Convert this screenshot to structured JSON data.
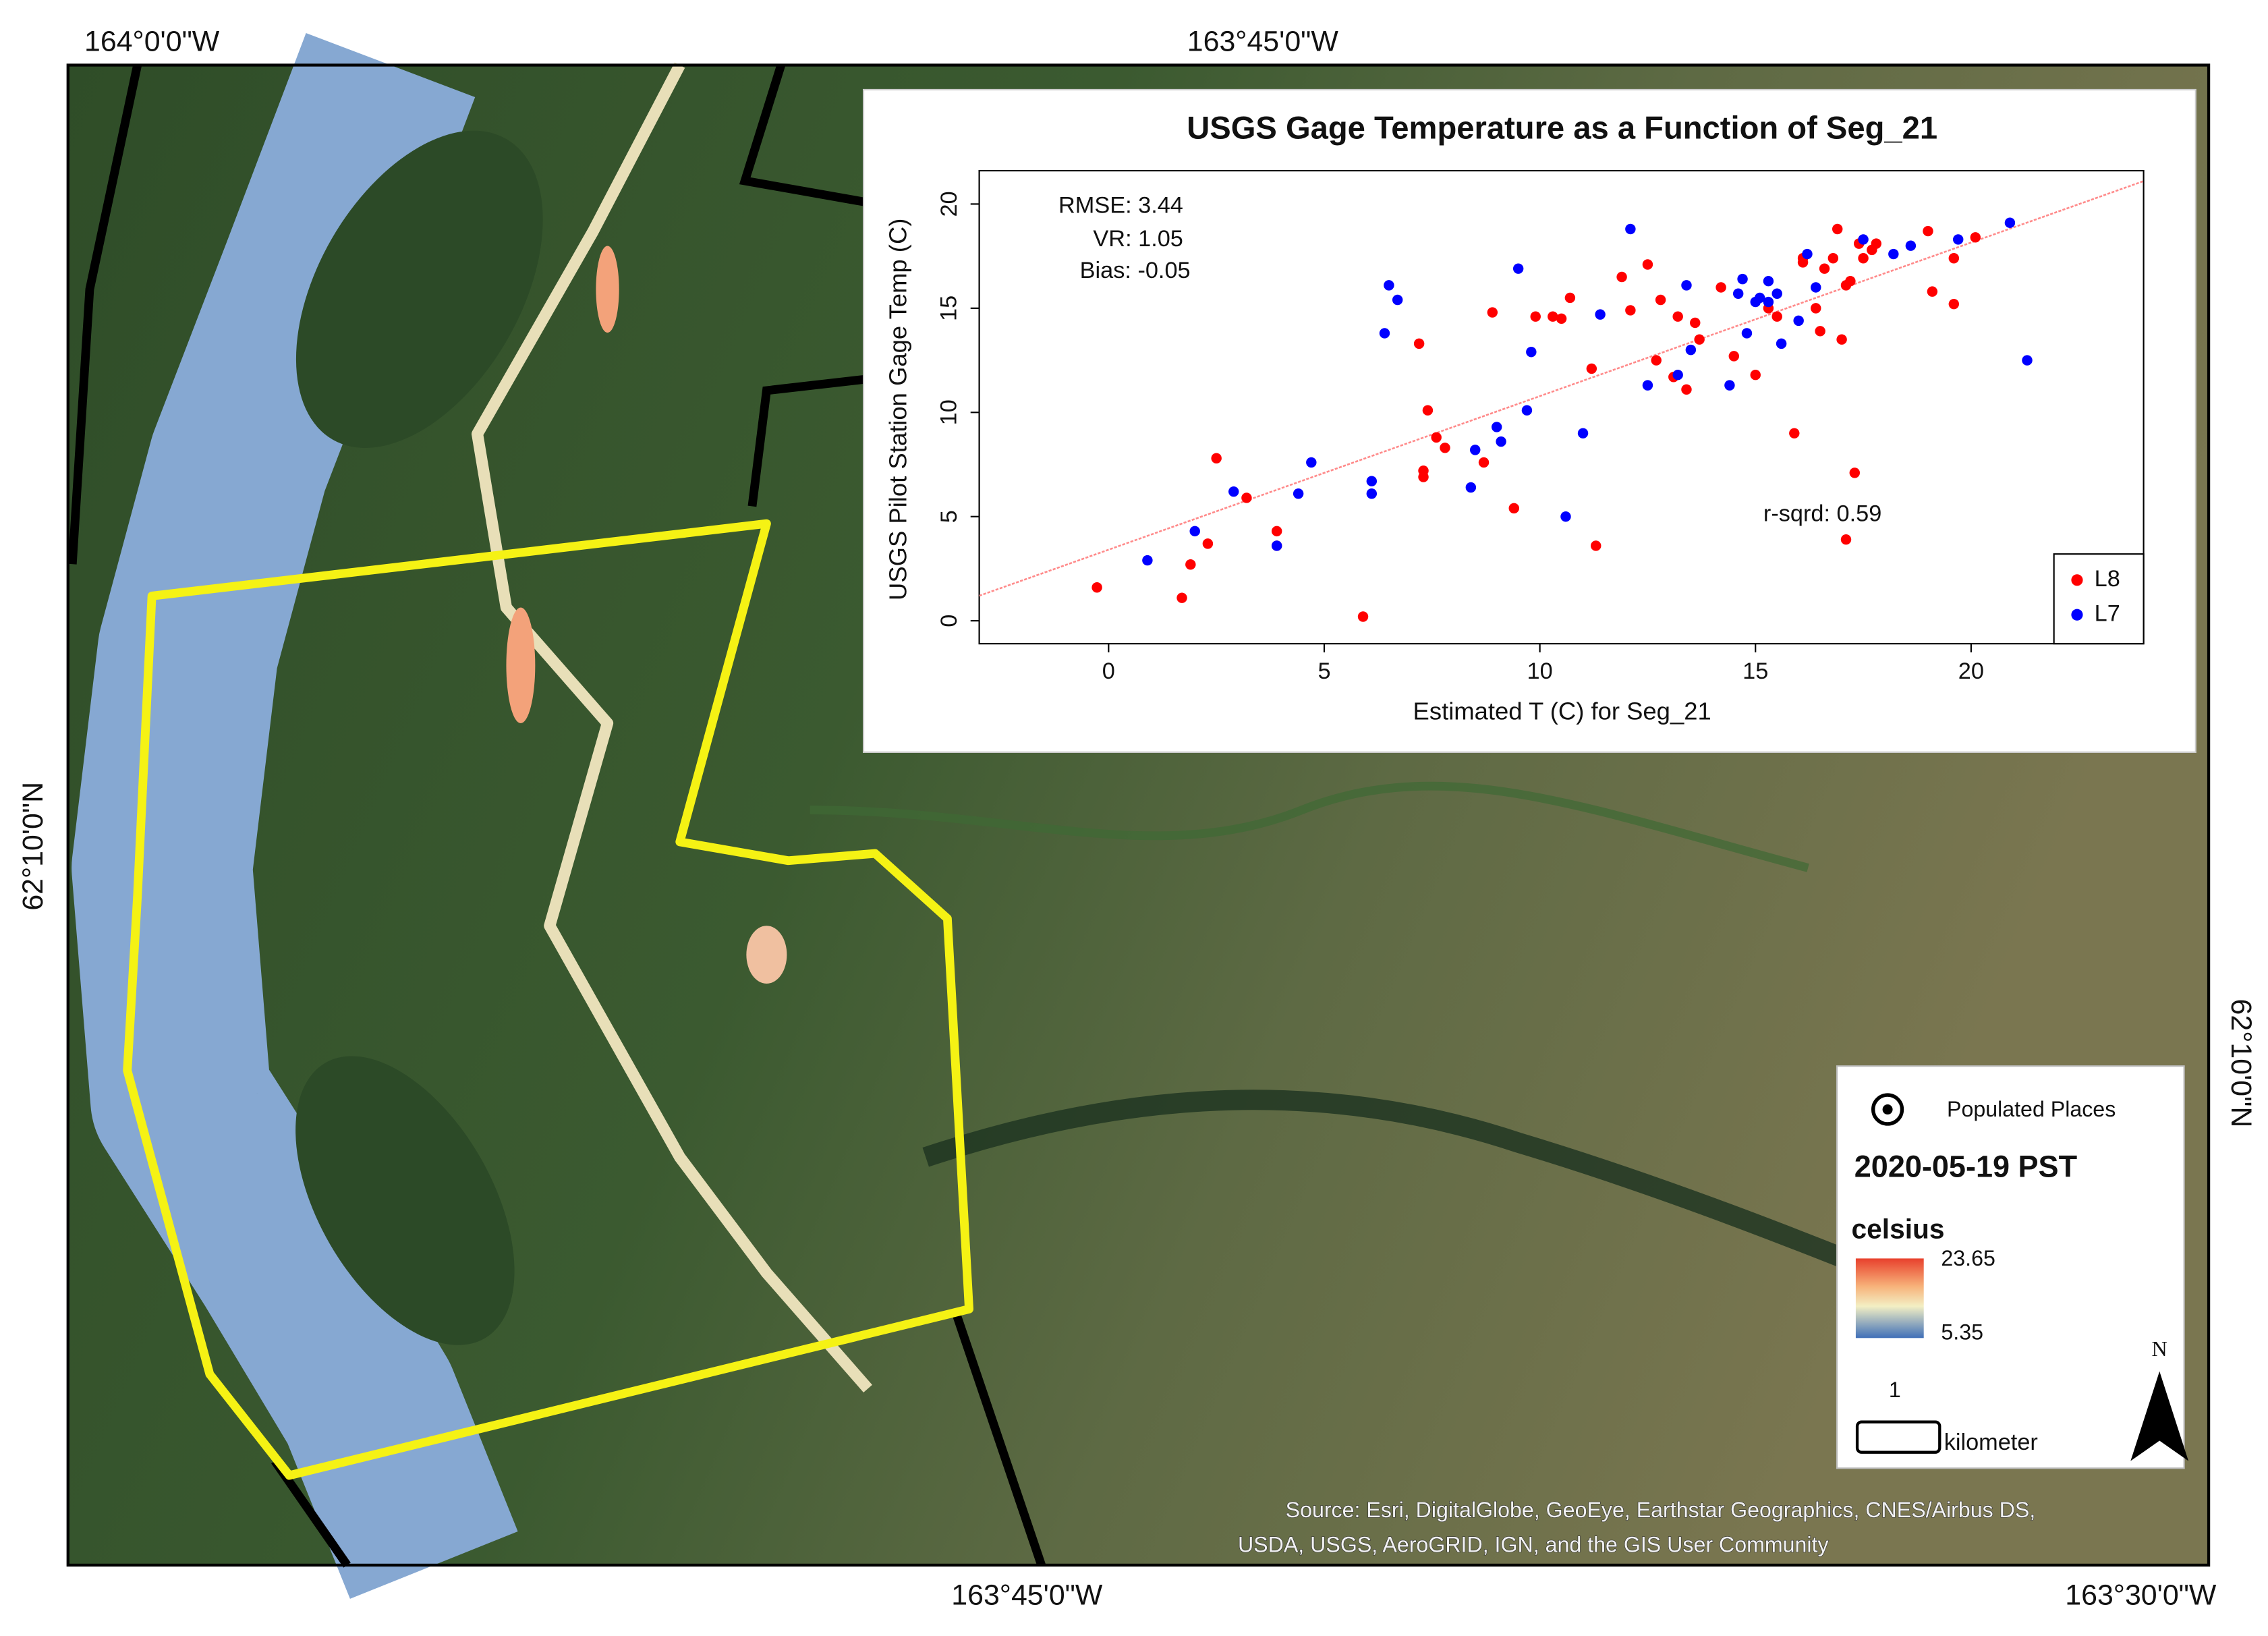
{
  "map": {
    "coords": {
      "top_left": "164°0'0\"W",
      "top_right": "163°45'0\"W",
      "bottom_left": "163°45'0\"W",
      "bottom_right": "163°30'0\"W",
      "left": "62°10'0\"N",
      "right": "62°10'0\"N"
    },
    "legend": {
      "places": "Populated Places",
      "date": "2020-05-19 PST",
      "unit": "celsius",
      "max": 23.65,
      "min": 5.35,
      "scale_value": "1",
      "scale_unit": "kilometer",
      "north": "N"
    },
    "source": [
      "Source: Esri, DigitalGlobe, GeoEye, Earthstar Geographics, CNES/Airbus DS,",
      "USDA, USGS, AeroGRID, IGN, and the GIS User Community"
    ]
  },
  "chart_data": {
    "type": "scatter",
    "title": "USGS Gage Temperature as a Function of Seg_21",
    "x_label": "Estimated T (C) for Seg_21",
    "y_label": "USGS Pilot Station Gage Temp (C)",
    "annotations": [
      "RMSE: 3.44",
      "VR: 1.05",
      "Bias: -0.05",
      "r-sqrd: 0.59"
    ],
    "xlim": [
      -3,
      24
    ],
    "ylim": [
      -1.1,
      21.6
    ],
    "xticks": [
      0,
      5,
      10,
      15,
      20
    ],
    "yticks": [
      0,
      5,
      10,
      15,
      20
    ],
    "grid": false,
    "legend": "bottom right",
    "fit_line": {
      "x": [
        -3,
        24
      ],
      "values": [
        1.2,
        21.1
      ],
      "color": "#ff8a8a"
    },
    "series": [
      {
        "name": "L8",
        "color": "#ff0000",
        "x": [
          -0.27,
          1.7,
          1.9,
          2.3,
          2.5,
          3.2,
          3.9,
          3.9,
          5.9,
          7.2,
          7.3,
          7.3,
          7.4,
          7.6,
          7.8,
          8.7,
          8.9,
          9.4,
          9.9,
          10.3,
          10.5,
          10.7,
          11.2,
          11.3,
          11.9,
          12.1,
          12.5,
          12.7,
          12.8,
          13.1,
          13.2,
          13.4,
          13.6,
          13.7,
          14.2,
          14.5,
          15.0,
          15.3,
          15.5,
          15.9,
          16.1,
          16.1,
          16.4,
          16.5,
          16.6,
          16.8,
          16.9,
          17.0,
          17.1,
          17.1,
          17.2,
          17.3,
          17.4,
          17.5,
          17.7,
          17.8,
          19.0,
          19.1,
          19.6,
          19.6,
          20.1
        ],
        "values": [
          1.6,
          1.1,
          2.7,
          3.7,
          7.8,
          5.9,
          4.3,
          3.6,
          0.2,
          13.3,
          6.9,
          7.2,
          10.1,
          8.8,
          8.3,
          7.6,
          14.8,
          5.4,
          14.6,
          14.6,
          14.5,
          15.5,
          12.1,
          3.6,
          16.5,
          14.9,
          17.1,
          12.5,
          15.4,
          11.7,
          14.6,
          11.1,
          14.3,
          13.5,
          16.0,
          12.7,
          11.8,
          15.0,
          14.6,
          9.0,
          17.4,
          17.2,
          15.0,
          13.9,
          16.9,
          17.4,
          18.8,
          13.5,
          16.1,
          3.9,
          16.3,
          7.1,
          18.1,
          17.4,
          17.8,
          18.1,
          18.7,
          15.8,
          17.4,
          15.2,
          18.4
        ]
      },
      {
        "name": "L7",
        "color": "#0000ff",
        "x": [
          0.9,
          2.0,
          2.9,
          3.9,
          4.4,
          4.7,
          6.1,
          6.1,
          6.4,
          6.5,
          6.7,
          8.4,
          8.5,
          9.0,
          9.1,
          9.5,
          9.7,
          9.8,
          10.6,
          11.0,
          11.4,
          12.1,
          12.5,
          13.2,
          13.5,
          13.4,
          14.4,
          14.6,
          14.7,
          14.8,
          15.0,
          15.1,
          15.3,
          15.3,
          15.5,
          15.6,
          16.2,
          16.0,
          16.4,
          17.5,
          18.2,
          18.6,
          19.7,
          20.9,
          21.3
        ],
        "values": [
          2.9,
          4.3,
          6.2,
          3.6,
          6.1,
          7.6,
          6.1,
          6.7,
          13.8,
          16.1,
          15.4,
          6.4,
          8.2,
          9.3,
          8.6,
          16.9,
          10.1,
          12.9,
          5.0,
          9.0,
          14.7,
          18.8,
          11.3,
          11.8,
          13.0,
          16.1,
          11.3,
          15.7,
          16.4,
          13.8,
          15.3,
          15.5,
          15.3,
          16.3,
          15.7,
          13.3,
          17.6,
          14.4,
          16.0,
          18.3,
          17.6,
          18.0,
          18.3,
          19.1,
          12.5
        ]
      }
    ]
  }
}
